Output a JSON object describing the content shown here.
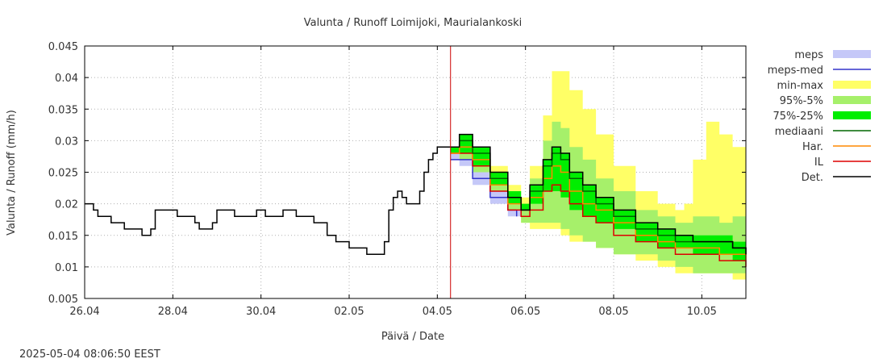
{
  "chart_data": {
    "type": "line",
    "title": "Valunta / Runoff  Loimijoki, Maurialankoski",
    "xlabel": "Päivä / Date",
    "ylabel": "Valunta / Runoff (mm/h)",
    "timestamp": "2025-05-04 08:06:50 EEST",
    "xlim": [
      0,
      15.0
    ],
    "ylim": [
      0.005,
      0.045
    ],
    "x_unit": "days from 26.04",
    "x_ticks": [
      {
        "x": 0,
        "label": "26.04"
      },
      {
        "x": 2,
        "label": "28.04"
      },
      {
        "x": 4,
        "label": "30.04"
      },
      {
        "x": 6,
        "label": "02.05"
      },
      {
        "x": 8,
        "label": "04.05"
      },
      {
        "x": 10,
        "label": "06.05"
      },
      {
        "x": 12,
        "label": "08.05"
      },
      {
        "x": 14,
        "label": "10.05"
      }
    ],
    "y_ticks": [
      {
        "y": 0.005,
        "label": "0.005"
      },
      {
        "y": 0.01,
        "label": "0.01"
      },
      {
        "y": 0.015,
        "label": "0.015"
      },
      {
        "y": 0.02,
        "label": "0.02"
      },
      {
        "y": 0.025,
        "label": "0.025"
      },
      {
        "y": 0.03,
        "label": "0.03"
      },
      {
        "y": 0.035,
        "label": "0.035"
      },
      {
        "y": 0.04,
        "label": "0.04"
      },
      {
        "y": 0.045,
        "label": "0.045"
      }
    ],
    "grid": true,
    "legend_position": "right",
    "forecast_start_x": 8.3,
    "colors": {
      "meps": "#c5c8f8",
      "meps_med": "#3333cc",
      "minmax": "#ffff66",
      "p95_5": "#a6f06a",
      "p75_25": "#00ee00",
      "mediaani": "#006600",
      "har": "#ff8800",
      "il": "#dd0000",
      "det": "#000000",
      "now_line": "#cc0000"
    },
    "legend": [
      {
        "key": "meps",
        "label": "meps",
        "kind": "band"
      },
      {
        "key": "meps_med",
        "label": "meps-med",
        "kind": "line"
      },
      {
        "key": "minmax",
        "label": "min-max",
        "kind": "band"
      },
      {
        "key": "p95_5",
        "label": "95%-5%",
        "kind": "band"
      },
      {
        "key": "p75_25",
        "label": "75%-25%",
        "kind": "band"
      },
      {
        "key": "mediaani",
        "label": "mediaani",
        "kind": "line"
      },
      {
        "key": "har",
        "label": "Har.",
        "kind": "line"
      },
      {
        "key": "il",
        "label": "IL",
        "kind": "line"
      },
      {
        "key": "det",
        "label": "Det.",
        "kind": "line"
      }
    ],
    "series": {
      "observed": {
        "x": [
          0,
          0.1,
          0.2,
          0.3,
          0.4,
          0.6,
          0.8,
          0.9,
          1.2,
          1.3,
          1.4,
          1.5,
          1.6,
          1.7,
          2.0,
          2.1,
          2.3,
          2.5,
          2.6,
          2.7,
          2.8,
          2.9,
          3.0,
          3.4,
          3.5,
          3.6,
          3.8,
          3.9,
          4.0,
          4.1,
          4.5,
          4.7,
          4.8,
          5.0,
          5.2,
          5.5,
          5.7,
          6.0,
          6.4,
          6.7,
          6.8,
          6.9,
          7.0,
          7.1,
          7.2,
          7.3,
          7.5,
          7.6,
          7.7,
          7.8,
          7.9,
          8.0,
          8.3
        ],
        "y": [
          0.02,
          0.02,
          0.019,
          0.018,
          0.018,
          0.017,
          0.017,
          0.016,
          0.016,
          0.015,
          0.015,
          0.016,
          0.019,
          0.019,
          0.019,
          0.018,
          0.018,
          0.017,
          0.016,
          0.016,
          0.016,
          0.017,
          0.019,
          0.018,
          0.018,
          0.018,
          0.018,
          0.019,
          0.019,
          0.018,
          0.019,
          0.019,
          0.018,
          0.018,
          0.017,
          0.015,
          0.014,
          0.013,
          0.012,
          0.012,
          0.014,
          0.019,
          0.021,
          0.022,
          0.021,
          0.02,
          0.02,
          0.022,
          0.025,
          0.027,
          0.028,
          0.029,
          0.029
        ]
      },
      "fx": [
        8.3,
        8.5,
        8.8,
        9.2,
        9.6,
        9.9,
        10.1,
        10.4,
        10.6,
        10.8,
        11.0,
        11.3,
        11.6,
        12.0,
        12.5,
        13.0,
        13.4,
        13.6,
        13.8,
        14.1,
        14.4,
        14.7,
        15.0
      ],
      "minmax": {
        "low": [
          0.028,
          0.027,
          0.025,
          0.022,
          0.019,
          0.017,
          0.016,
          0.016,
          0.016,
          0.015,
          0.014,
          0.014,
          0.013,
          0.012,
          0.011,
          0.01,
          0.009,
          0.009,
          0.009,
          0.009,
          0.009,
          0.008,
          0.008
        ],
        "high": [
          0.029,
          0.031,
          0.029,
          0.026,
          0.023,
          0.021,
          0.026,
          0.034,
          0.041,
          0.041,
          0.038,
          0.035,
          0.031,
          0.026,
          0.022,
          0.02,
          0.019,
          0.02,
          0.027,
          0.033,
          0.031,
          0.029,
          0.029
        ]
      },
      "p95_5": {
        "low": [
          0.028,
          0.027,
          0.025,
          0.022,
          0.019,
          0.017,
          0.017,
          0.017,
          0.017,
          0.016,
          0.015,
          0.014,
          0.013,
          0.012,
          0.012,
          0.011,
          0.01,
          0.01,
          0.009,
          0.009,
          0.009,
          0.009,
          0.008
        ],
        "high": [
          0.029,
          0.03,
          0.028,
          0.025,
          0.022,
          0.02,
          0.024,
          0.03,
          0.033,
          0.032,
          0.029,
          0.027,
          0.024,
          0.022,
          0.019,
          0.018,
          0.017,
          0.017,
          0.018,
          0.018,
          0.017,
          0.018,
          0.016
        ]
      },
      "p75_25": {
        "low": [
          0.028,
          0.028,
          0.026,
          0.023,
          0.02,
          0.019,
          0.02,
          0.022,
          0.022,
          0.021,
          0.019,
          0.018,
          0.017,
          0.016,
          0.014,
          0.013,
          0.013,
          0.013,
          0.012,
          0.012,
          0.012,
          0.011,
          0.011
        ],
        "high": [
          0.029,
          0.031,
          0.029,
          0.025,
          0.022,
          0.02,
          0.023,
          0.027,
          0.029,
          0.028,
          0.025,
          0.023,
          0.021,
          0.019,
          0.017,
          0.016,
          0.015,
          0.015,
          0.015,
          0.015,
          0.015,
          0.014,
          0.013
        ]
      },
      "meps": {
        "x": [
          8.3,
          8.5,
          8.8,
          9.2,
          9.6,
          9.9
        ],
        "low": [
          0.027,
          0.026,
          0.023,
          0.02,
          0.018,
          0.016
        ],
        "high": [
          0.028,
          0.027,
          0.025,
          0.022,
          0.019,
          0.017
        ]
      },
      "meps_med": {
        "x": [
          8.3,
          8.5,
          8.8,
          9.2,
          9.6,
          9.8
        ],
        "y": [
          0.027,
          0.027,
          0.024,
          0.021,
          0.019,
          0.018
        ]
      },
      "mediaani": [
        0.029,
        0.03,
        0.028,
        0.024,
        0.021,
        0.019,
        0.022,
        0.026,
        0.028,
        0.027,
        0.024,
        0.022,
        0.02,
        0.018,
        0.016,
        0.015,
        0.014,
        0.014,
        0.014,
        0.014,
        0.014,
        0.013,
        0.012
      ],
      "har": [
        0.028,
        0.029,
        0.027,
        0.023,
        0.02,
        0.019,
        0.021,
        0.024,
        0.026,
        0.025,
        0.022,
        0.02,
        0.019,
        0.017,
        0.015,
        0.014,
        0.013,
        0.013,
        0.013,
        0.013,
        0.012,
        0.012,
        0.011
      ],
      "il": [
        0.028,
        0.028,
        0.026,
        0.022,
        0.019,
        0.018,
        0.019,
        0.022,
        0.023,
        0.022,
        0.02,
        0.018,
        0.017,
        0.015,
        0.014,
        0.013,
        0.012,
        0.012,
        0.012,
        0.012,
        0.011,
        0.011,
        0.01
      ],
      "det": [
        0.029,
        0.031,
        0.029,
        0.025,
        0.021,
        0.019,
        0.023,
        0.027,
        0.029,
        0.028,
        0.025,
        0.023,
        0.021,
        0.019,
        0.017,
        0.016,
        0.015,
        0.015,
        0.014,
        0.014,
        0.014,
        0.013,
        0.012
      ]
    }
  }
}
